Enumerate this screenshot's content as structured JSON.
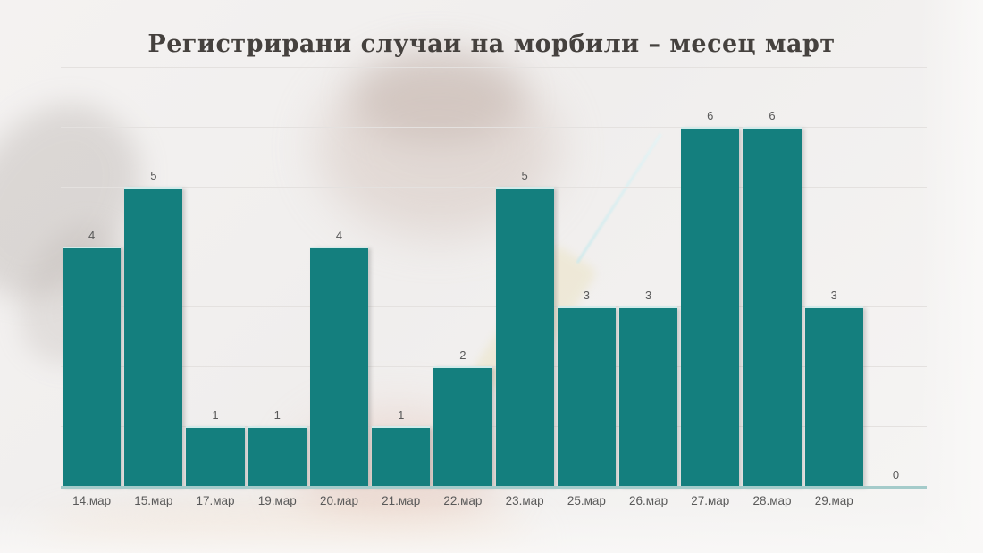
{
  "chart_data": {
    "type": "bar",
    "title": "Регистрирани случаи на морбили – месец март",
    "categories": [
      "14.мар",
      "15.мар",
      "17.мар",
      "19.мар",
      "20.мар",
      "21.мар",
      "22.мар",
      "23.мар",
      "25.мар",
      "26.мар",
      "27.мар",
      "28.мар",
      "29.мар",
      ""
    ],
    "values": [
      4,
      5,
      1,
      1,
      4,
      1,
      2,
      5,
      3,
      3,
      6,
      6,
      3,
      0
    ],
    "xlabel": "",
    "ylabel": "",
    "ylim": [
      0,
      7
    ],
    "grid": true,
    "gridline_levels": [
      1,
      2,
      3,
      4,
      5,
      6,
      7
    ],
    "data_labels": true,
    "legend": "none",
    "colors": {
      "bar": "#147f7e",
      "bar_top_edge": "#d2ebea",
      "baseline": "#a4cbca",
      "gridline": "#e4e1df",
      "value_label": "#595959",
      "axis_label": "#595959",
      "title": "#45413e",
      "background": "#f2f0ef"
    }
  },
  "background_photo": {
    "description": "faded vaccination photo watermark with syringe"
  }
}
